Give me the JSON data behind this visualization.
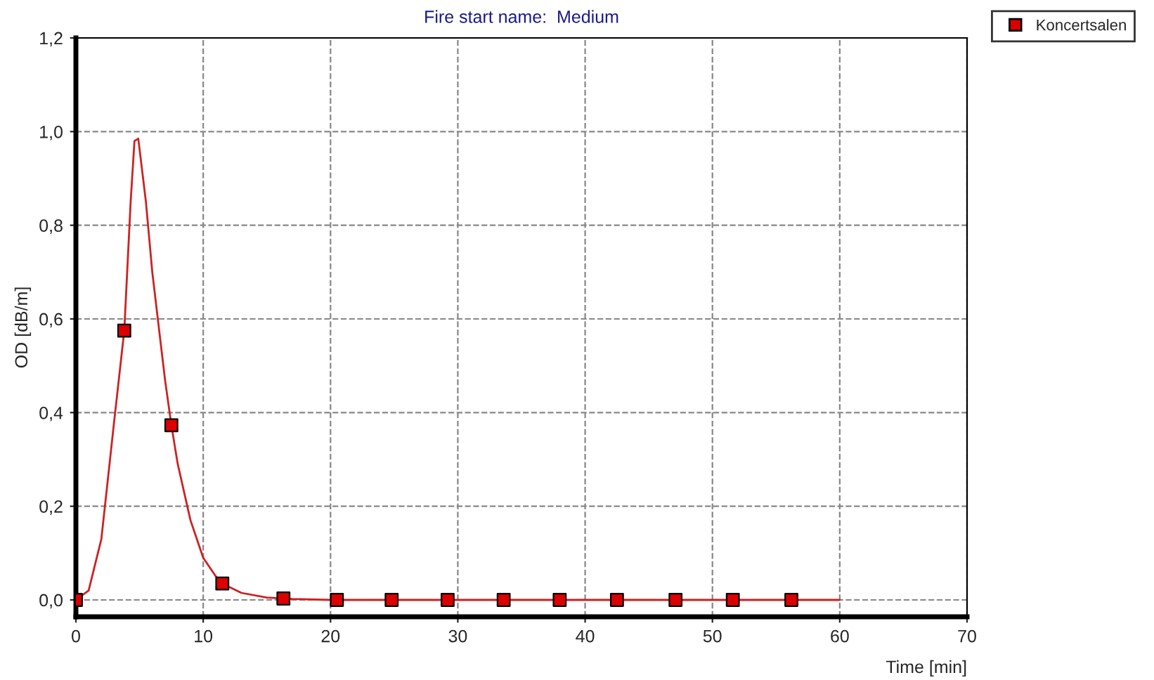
{
  "chart_data": {
    "type": "line",
    "subtitle": "Fire start name:  Medium",
    "xlabel": "Time [min]",
    "ylabel": "OD [dB/m]",
    "xlim": [
      0,
      70
    ],
    "xticks": [
      0,
      10,
      20,
      30,
      40,
      50,
      60,
      70
    ],
    "ylim": [
      -0.036,
      1.2
    ],
    "yticks": [
      {
        "value": 0,
        "label": "0,0"
      },
      {
        "value": 0.2,
        "label": "0,2"
      },
      {
        "value": 0.4,
        "label": "0,4"
      },
      {
        "value": 0.6,
        "label": "0,6"
      },
      {
        "value": 0.8,
        "label": "0,8"
      },
      {
        "value": 1.0,
        "label": "1,0"
      },
      {
        "value": 1.2,
        "label": "1,2"
      }
    ],
    "grid": true,
    "legend": "top right",
    "series": [
      {
        "color": "#cc2222",
        "marker": "none",
        "x": [
          0,
          1,
          2,
          3,
          3.8,
          4.3,
          4.6,
          4.9,
          5.5,
          6,
          7,
          7.5,
          8,
          9,
          10,
          11,
          11.5,
          13,
          15,
          17,
          20,
          60
        ],
        "values": [
          0,
          0.02,
          0.13,
          0.38,
          0.575,
          0.85,
          0.98,
          0.985,
          0.85,
          0.7,
          0.47,
          0.373,
          0.29,
          0.17,
          0.09,
          0.05,
          0.035,
          0.015,
          0.005,
          0.002,
          0,
          0
        ]
      },
      {
        "type": "scatter",
        "name": "Koncertsalen",
        "color": "#dd0000",
        "marker": "square",
        "x": [
          0,
          3.8,
          7.5,
          11.5,
          16.3,
          20.5,
          24.8,
          29.2,
          33.6,
          38,
          42.5,
          47.1,
          51.6,
          56.2
        ],
        "values": [
          0,
          0.575,
          0.373,
          0.035,
          0.003,
          0,
          0,
          0,
          0,
          0,
          0,
          0,
          0,
          0
        ]
      }
    ]
  }
}
